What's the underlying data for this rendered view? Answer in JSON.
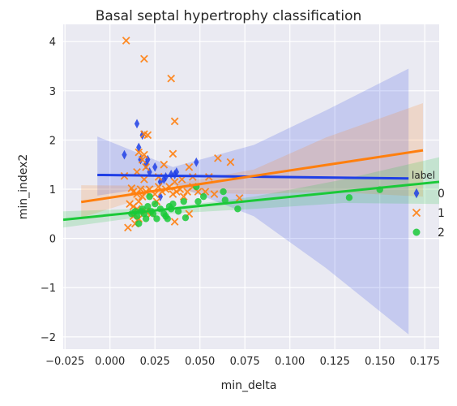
{
  "chart_data": {
    "type": "scatter",
    "title": "Basal septal hypertrophy classification",
    "xlabel": "min_delta",
    "ylabel": "min_index2",
    "xlim": [
      -0.026,
      0.183
    ],
    "ylim": [
      -2.25,
      4.35
    ],
    "xticks": [
      -0.025,
      0.0,
      0.025,
      0.05,
      0.075,
      0.1,
      0.125,
      0.15,
      0.175
    ],
    "xtick_labels": [
      "−0.025",
      "0.000",
      "0.025",
      "0.050",
      "0.075",
      "0.100",
      "0.125",
      "0.150",
      "0.175"
    ],
    "yticks": [
      -2,
      -1,
      0,
      1,
      2,
      3,
      4
    ],
    "ytick_labels": [
      "−2",
      "−1",
      "0",
      "1",
      "2",
      "3",
      "4"
    ],
    "grid": true,
    "legend": {
      "title": "label",
      "placement": "right"
    },
    "series": [
      {
        "name": "0",
        "color": "#1f3fe6",
        "marker": "diamond",
        "points": [
          [
            0.008,
            1.7
          ],
          [
            0.015,
            2.33
          ],
          [
            0.016,
            1.85
          ],
          [
            0.017,
            1.6
          ],
          [
            0.018,
            2.1
          ],
          [
            0.02,
            1.5
          ],
          [
            0.021,
            1.6
          ],
          [
            0.022,
            1.35
          ],
          [
            0.025,
            1.45
          ],
          [
            0.028,
            1.15
          ],
          [
            0.03,
            1.2
          ],
          [
            0.031,
            1.25
          ],
          [
            0.034,
            1.3
          ],
          [
            0.036,
            1.3
          ],
          [
            0.037,
            1.35
          ],
          [
            0.048,
            1.55
          ],
          [
            0.028,
            0.85
          ]
        ],
        "fit": {
          "x": [
            -0.007,
            0.166
          ],
          "y": [
            1.29,
            1.22
          ]
        },
        "ci_upper": [
          [
            -0.007,
            2.07
          ],
          [
            0.035,
            1.45
          ],
          [
            0.08,
            1.9
          ],
          [
            0.12,
            2.6
          ],
          [
            0.166,
            3.45
          ]
        ],
        "ci_lower": [
          [
            -0.007,
            0.87
          ],
          [
            0.035,
            1.1
          ],
          [
            0.08,
            0.45
          ],
          [
            0.12,
            -0.6
          ],
          [
            0.166,
            -1.95
          ]
        ]
      },
      {
        "name": "1",
        "color": "#ff7f0e",
        "marker": "x",
        "points": [
          [
            0.009,
            4.02
          ],
          [
            0.019,
            3.65
          ],
          [
            0.034,
            3.25
          ],
          [
            0.036,
            2.38
          ],
          [
            0.019,
            2.12
          ],
          [
            0.021,
            2.1
          ],
          [
            0.016,
            1.75
          ],
          [
            0.019,
            1.7
          ],
          [
            0.035,
            1.72
          ],
          [
            0.06,
            1.63
          ],
          [
            0.067,
            1.55
          ],
          [
            0.018,
            1.6
          ],
          [
            0.02,
            1.45
          ],
          [
            0.044,
            1.45
          ],
          [
            0.008,
            1.27
          ],
          [
            0.015,
            1.35
          ],
          [
            0.019,
            1.2
          ],
          [
            0.027,
            1.25
          ],
          [
            0.03,
            1.5
          ],
          [
            0.036,
            1.15
          ],
          [
            0.04,
            1.2
          ],
          [
            0.046,
            1.25
          ],
          [
            0.055,
            1.25
          ],
          [
            0.012,
            1.02
          ],
          [
            0.013,
            0.95
          ],
          [
            0.015,
            0.9
          ],
          [
            0.017,
            1.0
          ],
          [
            0.018,
            0.85
          ],
          [
            0.02,
            0.95
          ],
          [
            0.022,
            1.0
          ],
          [
            0.025,
            0.9
          ],
          [
            0.027,
            1.05
          ],
          [
            0.029,
            0.95
          ],
          [
            0.031,
            1.0
          ],
          [
            0.033,
            1.05
          ],
          [
            0.035,
            0.9
          ],
          [
            0.037,
            0.95
          ],
          [
            0.039,
            1.0
          ],
          [
            0.041,
            0.85
          ],
          [
            0.043,
            0.95
          ],
          [
            0.046,
            1.05
          ],
          [
            0.049,
            0.95
          ],
          [
            0.053,
            0.95
          ],
          [
            0.058,
            0.9
          ],
          [
            0.011,
            0.7
          ],
          [
            0.013,
            0.65
          ],
          [
            0.015,
            0.6
          ],
          [
            0.016,
            0.75
          ],
          [
            0.02,
            0.55
          ],
          [
            0.023,
            0.5
          ],
          [
            0.026,
            0.75
          ],
          [
            0.013,
            0.45
          ],
          [
            0.016,
            0.4
          ],
          [
            0.01,
            0.22
          ],
          [
            0.014,
            0.3
          ],
          [
            0.036,
            0.34
          ],
          [
            0.044,
            0.5
          ],
          [
            0.072,
            0.82
          ]
        ],
        "fit": {
          "x": [
            -0.016,
            0.174
          ],
          "y": [
            0.74,
            1.79
          ]
        },
        "ci_upper": [
          [
            -0.016,
            1.08
          ],
          [
            0.03,
            1.07
          ],
          [
            0.08,
            1.4
          ],
          [
            0.12,
            2.05
          ],
          [
            0.174,
            2.75
          ]
        ],
        "ci_lower": [
          [
            -0.016,
            0.42
          ],
          [
            0.03,
            0.95
          ],
          [
            0.08,
            0.9
          ],
          [
            0.12,
            0.95
          ],
          [
            0.174,
            0.85
          ]
        ]
      },
      {
        "name": "2",
        "color": "#1ac938",
        "marker": "circle",
        "points": [
          [
            0.012,
            0.5
          ],
          [
            0.014,
            0.55
          ],
          [
            0.015,
            0.45
          ],
          [
            0.016,
            0.3
          ],
          [
            0.017,
            0.55
          ],
          [
            0.018,
            0.6
          ],
          [
            0.019,
            0.5
          ],
          [
            0.02,
            0.4
          ],
          [
            0.021,
            0.65
          ],
          [
            0.022,
            0.85
          ],
          [
            0.023,
            0.55
          ],
          [
            0.024,
            0.5
          ],
          [
            0.025,
            0.7
          ],
          [
            0.026,
            0.4
          ],
          [
            0.028,
            0.6
          ],
          [
            0.03,
            0.5
          ],
          [
            0.031,
            0.45
          ],
          [
            0.032,
            0.4
          ],
          [
            0.033,
            0.65
          ],
          [
            0.034,
            0.6
          ],
          [
            0.035,
            0.7
          ],
          [
            0.038,
            0.55
          ],
          [
            0.041,
            0.75
          ],
          [
            0.042,
            0.42
          ],
          [
            0.048,
            1.05
          ],
          [
            0.049,
            0.75
          ],
          [
            0.052,
            0.85
          ],
          [
            0.063,
            0.95
          ],
          [
            0.064,
            0.78
          ],
          [
            0.071,
            0.6
          ],
          [
            0.133,
            0.83
          ],
          [
            0.15,
            0.99
          ]
        ],
        "fit": {
          "x": [
            -0.026,
            0.183
          ],
          "y": [
            0.38,
            1.15
          ]
        },
        "ci_upper": [
          [
            -0.026,
            0.55
          ],
          [
            0.03,
            0.62
          ],
          [
            0.08,
            0.85
          ],
          [
            0.13,
            1.2
          ],
          [
            0.183,
            1.65
          ]
        ],
        "ci_lower": [
          [
            -0.026,
            0.22
          ],
          [
            0.03,
            0.5
          ],
          [
            0.08,
            0.6
          ],
          [
            0.13,
            0.72
          ],
          [
            0.183,
            0.7
          ]
        ]
      }
    ]
  }
}
